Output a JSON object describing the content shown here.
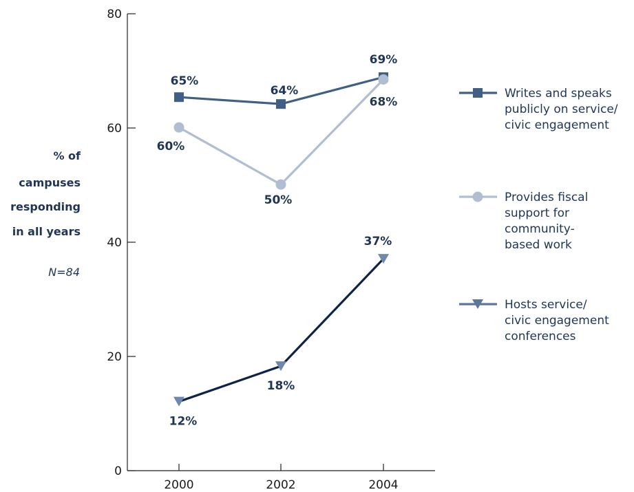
{
  "chart_data": {
    "type": "line",
    "x": [
      "2000",
      "2002",
      "2004"
    ],
    "ylim": [
      0,
      80
    ],
    "yticks": [
      "0",
      "20",
      "40",
      "60",
      "80"
    ],
    "ylabel_lines": [
      "% of",
      "campuses",
      "responding",
      "in all years"
    ],
    "note": "N=84",
    "grid": false,
    "legend_position": "right",
    "series": [
      {
        "name_lines": [
          "Writes and speaks",
          "publicly on service/",
          "civic engagement"
        ],
        "values": [
          65.4,
          64.2,
          68.9
        ],
        "labels": [
          "65%",
          "64%",
          "69%"
        ],
        "marker": "square",
        "color": "#3f5f85"
      },
      {
        "name_lines": [
          "Provides fiscal",
          "support for",
          "community-",
          "based work"
        ],
        "values": [
          60.1,
          50.1,
          68.5
        ],
        "labels": [
          "60%",
          "50%",
          "68%"
        ],
        "marker": "circle",
        "color": "#b1bdd0"
      },
      {
        "name_lines": [
          "Hosts service/",
          "civic engagement",
          "conferences"
        ],
        "values": [
          12.1,
          18.3,
          37.1
        ],
        "labels": [
          "12%",
          "18%",
          "37%"
        ],
        "marker": "triangle-down",
        "color": "#0f2346",
        "marker_color": "#6f88ac",
        "legend_color": "#5d769b"
      }
    ]
  }
}
